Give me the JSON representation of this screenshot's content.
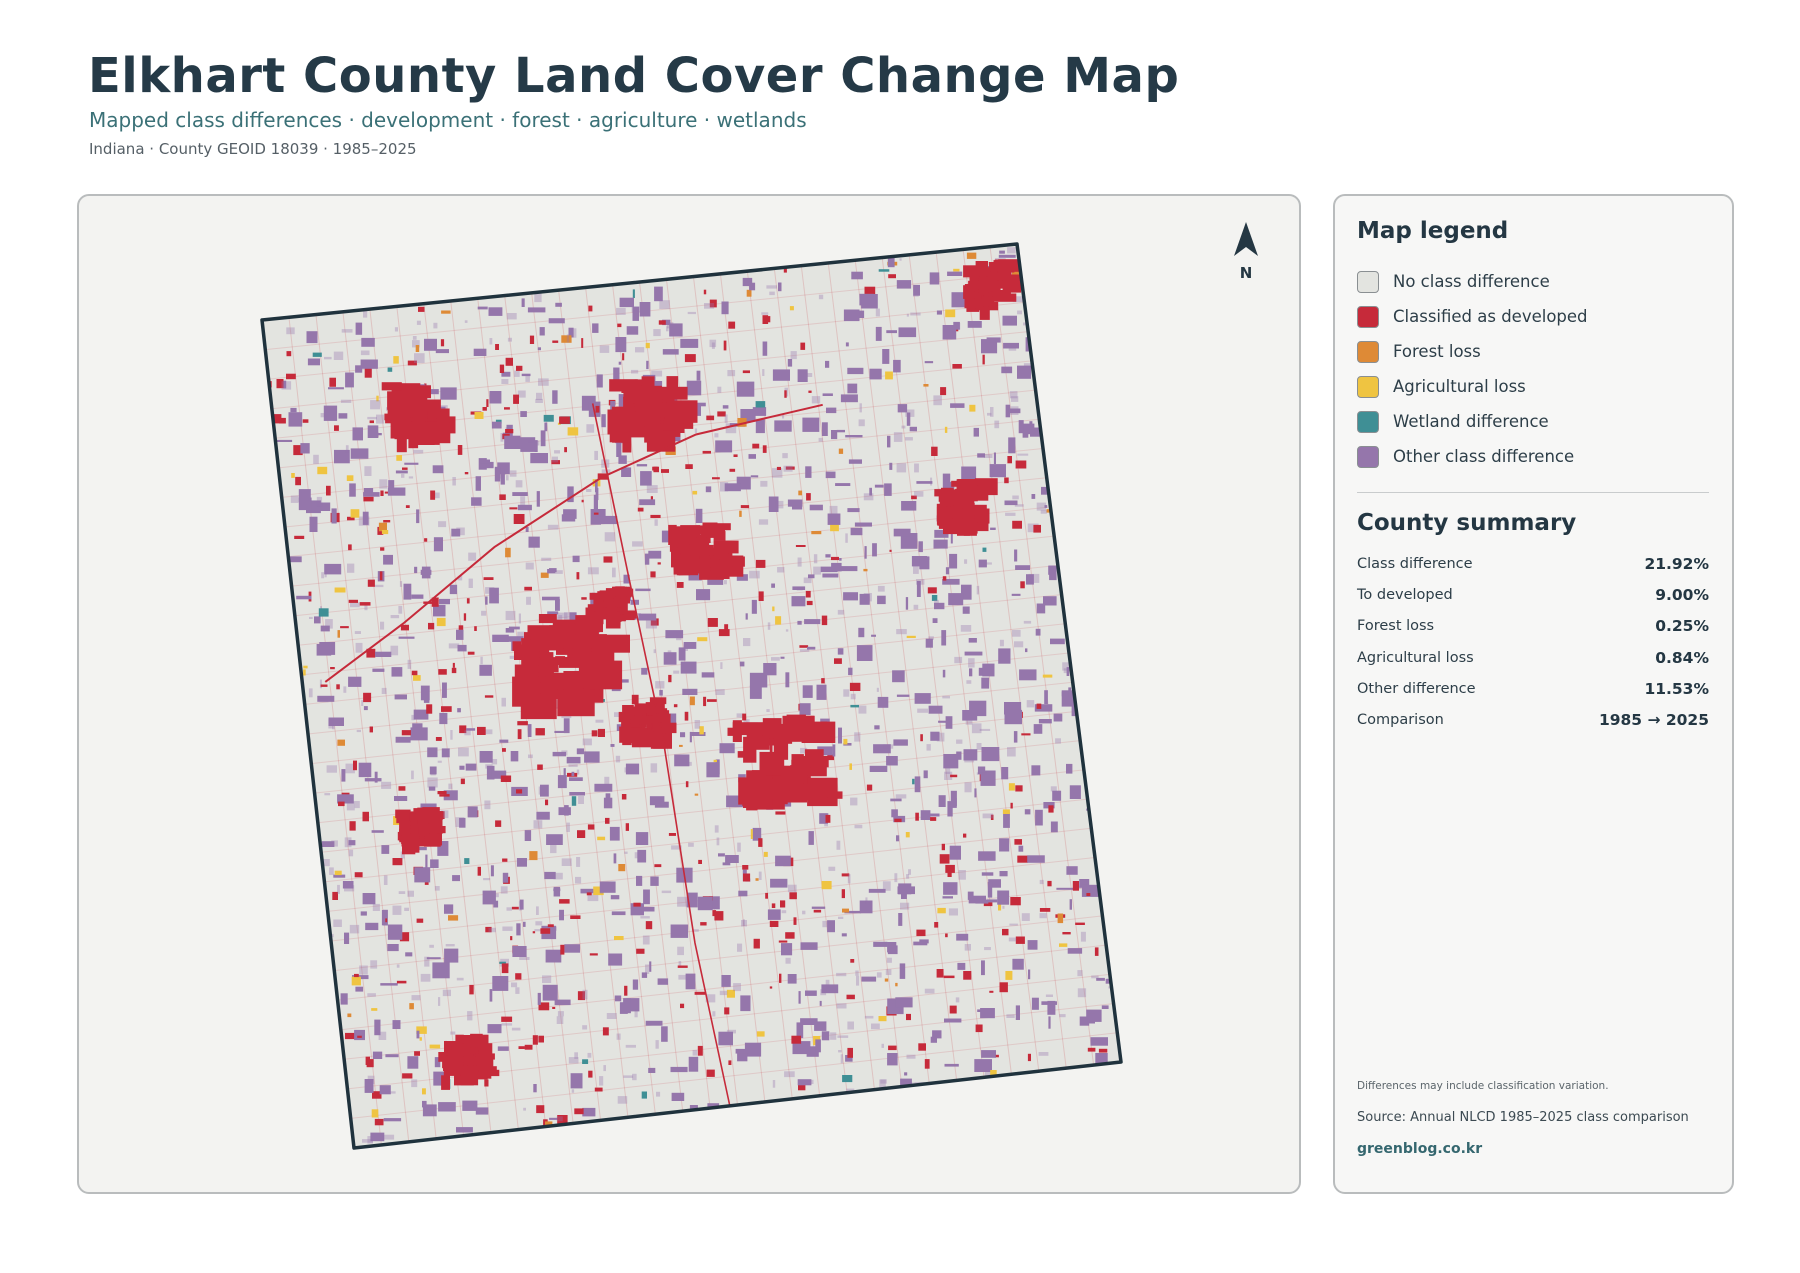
{
  "header": {
    "title": "Elkhart County Land Cover Change Map",
    "subtitle": "Mapped class differences · development · forest · agriculture · wetlands",
    "meta": "Indiana · County GEOID 18039 · 1985–2025"
  },
  "map": {
    "north_label": "N",
    "colors": {
      "background": "#e3e4e0",
      "border": "#1f323d",
      "developed": "#c62a3a",
      "forest_loss": "#de8a36",
      "agricultural_loss": "#efc441",
      "wetland_difference": "#3f8f95",
      "other_difference": "#9576ab"
    }
  },
  "legend": {
    "title": "Map legend",
    "items": [
      {
        "label": "No class difference",
        "color": "#e3e4e0"
      },
      {
        "label": "Classified as developed",
        "color": "#c62a3a"
      },
      {
        "label": "Forest loss",
        "color": "#de8a36"
      },
      {
        "label": "Agricultural loss",
        "color": "#efc441"
      },
      {
        "label": "Wetland difference",
        "color": "#3f8f95"
      },
      {
        "label": "Other class difference",
        "color": "#9576ab"
      }
    ]
  },
  "summary": {
    "title": "County summary",
    "rows": [
      {
        "label": "Class difference",
        "value": "21.92%"
      },
      {
        "label": "To developed",
        "value": "9.00%"
      },
      {
        "label": "Forest loss",
        "value": "0.25%"
      },
      {
        "label": "Agricultural loss",
        "value": "0.84%"
      },
      {
        "label": "Other difference",
        "value": "11.53%"
      },
      {
        "label": "Comparison",
        "value": "1985 → 2025"
      }
    ]
  },
  "footer": {
    "note": "Differences may include classification variation.",
    "source": "Source: Annual NLCD 1985–2025 class comparison",
    "credit": "greenblog.co.kr"
  }
}
